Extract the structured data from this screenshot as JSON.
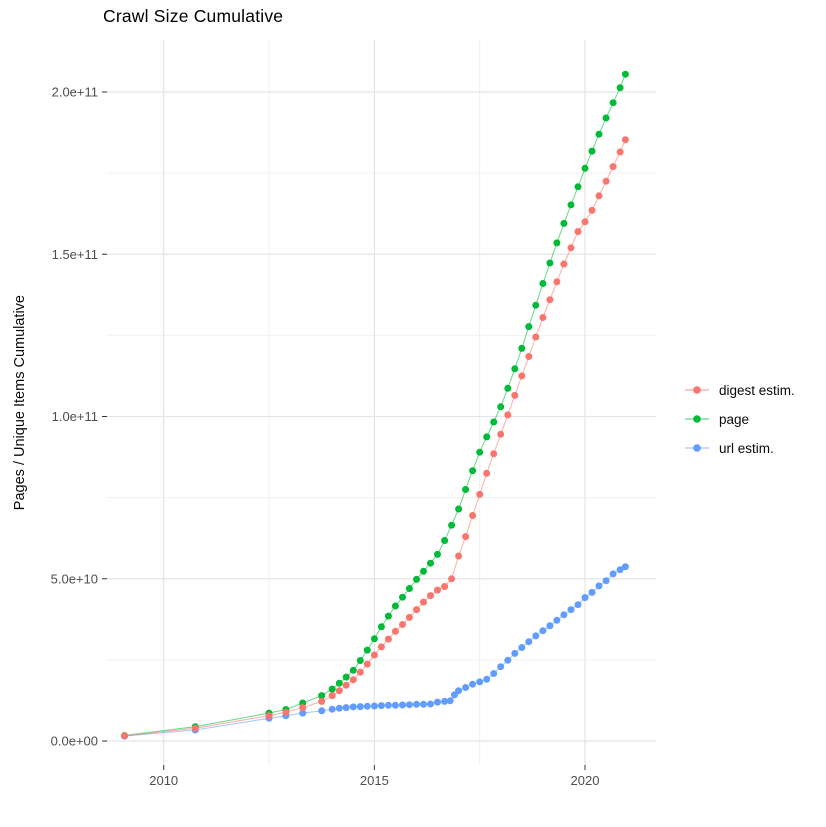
{
  "chart_data": {
    "type": "scatter",
    "title": "Crawl Size Cumulative",
    "xlabel": "",
    "ylabel": "Pages / Unique Items Cumulative",
    "xlim": [
      2008.6,
      2021.7
    ],
    "ylim": [
      -10000000000,
      215000000000
    ],
    "grid": true,
    "legend_position": "right",
    "x_ticks": {
      "values": [
        2010,
        2015,
        2020
      ],
      "labels": [
        "2010",
        "2015",
        "2020"
      ]
    },
    "x_minor": [
      2012.5,
      2017.5
    ],
    "y_ticks": {
      "values_e9": [
        0,
        50,
        100,
        150,
        200
      ],
      "labels": [
        "0.0e+00",
        "5.0e+10",
        "1.0e+11",
        "1.5e+11",
        "2.0e+11"
      ]
    },
    "y_minor_e9": [
      25,
      75,
      125,
      175
    ],
    "value_unit": "1e9",
    "series": [
      {
        "name": "digest estim.",
        "color": "#F8766D",
        "points": [
          [
            2009.07,
            1.6
          ],
          [
            2010.75,
            3.9
          ],
          [
            2012.5,
            7.8
          ],
          [
            2012.9,
            8.8
          ],
          [
            2013.3,
            10.3
          ],
          [
            2013.75,
            12.2
          ],
          [
            2014.0,
            14.0
          ],
          [
            2014.167,
            15.5
          ],
          [
            2014.333,
            17.2
          ],
          [
            2014.5,
            18.9
          ],
          [
            2014.667,
            21.2
          ],
          [
            2014.833,
            23.7
          ],
          [
            2015.0,
            26.5
          ],
          [
            2015.167,
            29.0
          ],
          [
            2015.333,
            31.4
          ],
          [
            2015.5,
            33.8
          ],
          [
            2015.667,
            35.9
          ],
          [
            2015.833,
            38.1
          ],
          [
            2016.0,
            40.5
          ],
          [
            2016.167,
            42.8
          ],
          [
            2016.333,
            44.8
          ],
          [
            2016.5,
            46.5
          ],
          [
            2016.667,
            47.6
          ],
          [
            2016.833,
            50.0
          ],
          [
            2017.0,
            57.0
          ],
          [
            2017.167,
            63.0
          ],
          [
            2017.333,
            69.5
          ],
          [
            2017.5,
            76.0
          ],
          [
            2017.667,
            82.5
          ],
          [
            2017.833,
            88.5
          ],
          [
            2018.0,
            94.5
          ],
          [
            2018.167,
            100.5
          ],
          [
            2018.333,
            106.5
          ],
          [
            2018.5,
            112.5
          ],
          [
            2018.667,
            118.5
          ],
          [
            2018.833,
            124.5
          ],
          [
            2019.0,
            130.5
          ],
          [
            2019.167,
            136.0
          ],
          [
            2019.333,
            141.5
          ],
          [
            2019.5,
            147.0
          ],
          [
            2019.667,
            152.0
          ],
          [
            2019.833,
            157.0
          ],
          [
            2020.0,
            160.0
          ],
          [
            2020.167,
            163.5
          ],
          [
            2020.333,
            168.0
          ],
          [
            2020.5,
            172.5
          ],
          [
            2020.667,
            177.0
          ],
          [
            2020.833,
            181.5
          ],
          [
            2020.96,
            185.3
          ]
        ]
      },
      {
        "name": "page",
        "color": "#00BA38",
        "points": [
          [
            2009.07,
            1.7
          ],
          [
            2010.75,
            4.4
          ],
          [
            2012.5,
            8.6
          ],
          [
            2012.9,
            9.7
          ],
          [
            2013.3,
            11.7
          ],
          [
            2013.75,
            14.0
          ],
          [
            2014.0,
            16.0
          ],
          [
            2014.167,
            17.8
          ],
          [
            2014.333,
            19.7
          ],
          [
            2014.5,
            21.8
          ],
          [
            2014.667,
            24.8
          ],
          [
            2014.833,
            28.0
          ],
          [
            2015.0,
            31.5
          ],
          [
            2015.167,
            35.2
          ],
          [
            2015.333,
            38.5
          ],
          [
            2015.5,
            41.6
          ],
          [
            2015.667,
            44.3
          ],
          [
            2015.833,
            47.0
          ],
          [
            2016.0,
            49.8
          ],
          [
            2016.167,
            52.3
          ],
          [
            2016.333,
            54.8
          ],
          [
            2016.5,
            57.5
          ],
          [
            2016.667,
            61.8
          ],
          [
            2016.833,
            66.5
          ],
          [
            2017.0,
            71.5
          ],
          [
            2017.167,
            77.5
          ],
          [
            2017.333,
            83.3
          ],
          [
            2017.5,
            89.0
          ],
          [
            2017.667,
            93.7
          ],
          [
            2017.833,
            98.3
          ],
          [
            2018.0,
            103.0
          ],
          [
            2018.167,
            108.7
          ],
          [
            2018.333,
            114.7
          ],
          [
            2018.5,
            121.0
          ],
          [
            2018.667,
            127.7
          ],
          [
            2018.833,
            134.3
          ],
          [
            2019.0,
            141.0
          ],
          [
            2019.167,
            147.3
          ],
          [
            2019.333,
            153.5
          ],
          [
            2019.5,
            159.5
          ],
          [
            2019.667,
            165.2
          ],
          [
            2019.833,
            170.8
          ],
          [
            2020.0,
            176.5
          ],
          [
            2020.167,
            181.8
          ],
          [
            2020.333,
            187.0
          ],
          [
            2020.5,
            192.0
          ],
          [
            2020.667,
            196.7
          ],
          [
            2020.833,
            201.3
          ],
          [
            2020.96,
            205.5
          ]
        ]
      },
      {
        "name": "url estim.",
        "color": "#619CFF",
        "points": [
          [
            2009.07,
            1.5
          ],
          [
            2010.75,
            3.4
          ],
          [
            2012.5,
            7.0
          ],
          [
            2012.9,
            7.8
          ],
          [
            2013.3,
            8.6
          ],
          [
            2013.75,
            9.3
          ],
          [
            2014.0,
            9.8
          ],
          [
            2014.167,
            10.1
          ],
          [
            2014.333,
            10.3
          ],
          [
            2014.5,
            10.5
          ],
          [
            2014.667,
            10.6
          ],
          [
            2014.833,
            10.7
          ],
          [
            2015.0,
            10.8
          ],
          [
            2015.167,
            10.9
          ],
          [
            2015.333,
            11.0
          ],
          [
            2015.5,
            11.0
          ],
          [
            2015.667,
            11.1
          ],
          [
            2015.833,
            11.2
          ],
          [
            2016.0,
            11.3
          ],
          [
            2016.167,
            11.3
          ],
          [
            2016.333,
            11.4
          ],
          [
            2016.5,
            12.0
          ],
          [
            2016.667,
            12.2
          ],
          [
            2016.8,
            12.4
          ],
          [
            2016.9,
            14.2
          ],
          [
            2017.0,
            15.5
          ],
          [
            2017.167,
            16.5
          ],
          [
            2017.333,
            17.5
          ],
          [
            2017.5,
            18.2
          ],
          [
            2017.667,
            19.0
          ],
          [
            2017.833,
            20.8
          ],
          [
            2018.0,
            22.9
          ],
          [
            2018.167,
            24.9
          ],
          [
            2018.333,
            27.0
          ],
          [
            2018.5,
            28.8
          ],
          [
            2018.667,
            30.6
          ],
          [
            2018.833,
            32.4
          ],
          [
            2019.0,
            34.0
          ],
          [
            2019.167,
            35.5
          ],
          [
            2019.333,
            37.2
          ],
          [
            2019.5,
            38.9
          ],
          [
            2019.667,
            40.5
          ],
          [
            2019.833,
            42.0
          ],
          [
            2020.0,
            44.2
          ],
          [
            2020.167,
            45.8
          ],
          [
            2020.333,
            47.8
          ],
          [
            2020.5,
            49.4
          ],
          [
            2020.667,
            51.5
          ],
          [
            2020.833,
            52.8
          ],
          [
            2020.96,
            53.7
          ]
        ]
      }
    ]
  },
  "style_colors": {
    "grid_major": "#e4e4e4",
    "grid_minor": "#f0f0f0",
    "tick_mark": "#333333",
    "tick_label": "#4d4d4d"
  }
}
